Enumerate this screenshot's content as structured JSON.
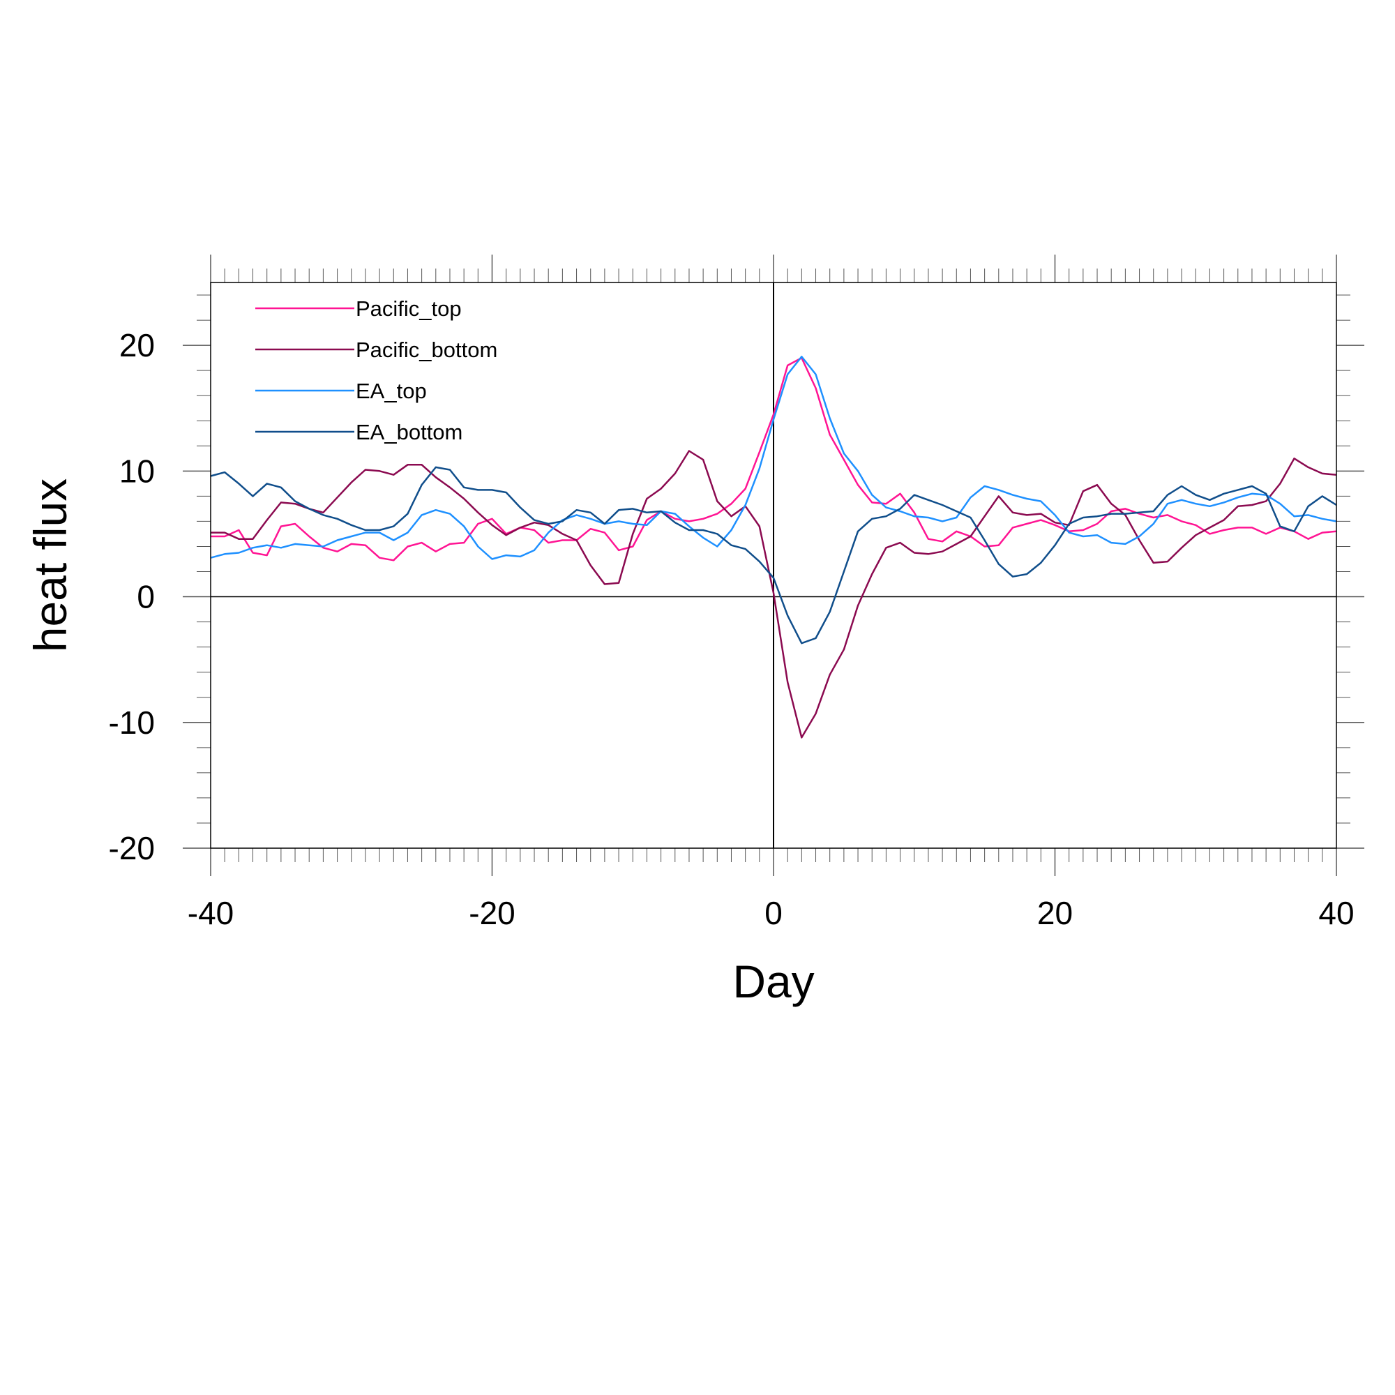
{
  "chart_data": {
    "type": "line",
    "title": "",
    "xlabel": "Day",
    "ylabel": "heat flux",
    "xlim": [
      -40,
      40
    ],
    "ylim": [
      -20,
      25
    ],
    "x_ticks": [
      "-40",
      "-20",
      "0",
      "20",
      "40"
    ],
    "x_tick_values": [
      -40,
      -20,
      0,
      20,
      40
    ],
    "y_ticks": [
      "-20",
      "-10",
      "0",
      "10",
      "20"
    ],
    "y_tick_values": [
      -20,
      -10,
      0,
      10,
      20
    ],
    "zero_line": true,
    "vertical_line_at": 0,
    "legend_position": "top-left",
    "x": [
      -40,
      -39,
      -38,
      -37,
      -36,
      -35,
      -34,
      -33,
      -32,
      -31,
      -30,
      -29,
      -28,
      -27,
      -26,
      -25,
      -24,
      -23,
      -22,
      -21,
      -20,
      -19,
      -18,
      -17,
      -16,
      -15,
      -14,
      -13,
      -12,
      -11,
      -10,
      -9,
      -8,
      -7,
      -6,
      -5,
      -4,
      -3,
      -2,
      -1,
      0,
      1,
      2,
      3,
      4,
      5,
      6,
      7,
      8,
      9,
      10,
      11,
      12,
      13,
      14,
      15,
      16,
      17,
      18,
      19,
      20,
      21,
      22,
      23,
      24,
      25,
      26,
      27,
      28,
      29,
      30,
      31,
      32,
      33,
      34,
      35,
      36,
      37,
      38,
      39,
      40
    ],
    "series": [
      {
        "name": "Pacific_top",
        "color": "#ff1493",
        "values": [
          4.8,
          4.8,
          5.3,
          3.5,
          3.3,
          5.6,
          5.8,
          4.8,
          3.9,
          3.6,
          4.2,
          4.1,
          3.1,
          2.9,
          4.0,
          4.3,
          3.6,
          4.2,
          4.3,
          5.8,
          6.2,
          5.0,
          5.5,
          5.3,
          4.3,
          4.5,
          4.5,
          5.4,
          5.1,
          3.7,
          4.0,
          6.1,
          6.8,
          6.2,
          6.0,
          6.2,
          6.6,
          7.4,
          8.6,
          11.5,
          14.5,
          18.4,
          19.0,
          16.6,
          12.9,
          10.9,
          8.9,
          7.5,
          7.4,
          8.2,
          6.7,
          4.6,
          4.4,
          5.2,
          4.8,
          4.0,
          4.1,
          5.5,
          5.8,
          6.1,
          5.7,
          5.2,
          5.3,
          5.8,
          6.8,
          7.0,
          6.6,
          6.3,
          6.5,
          6.0,
          5.7,
          5.0,
          5.3,
          5.5,
          5.5,
          5.0,
          5.5,
          5.2,
          4.6,
          5.1,
          5.2
        ]
      },
      {
        "name": "Pacific_bottom",
        "color": "#8b0a50",
        "values": [
          5.1,
          5.1,
          4.6,
          4.6,
          6.1,
          7.5,
          7.4,
          7.0,
          6.7,
          7.9,
          9.1,
          10.1,
          10.0,
          9.7,
          10.5,
          10.5,
          9.5,
          8.7,
          7.8,
          6.7,
          5.7,
          4.9,
          5.5,
          5.9,
          5.7,
          5.0,
          4.5,
          2.5,
          1.0,
          1.1,
          5.0,
          7.8,
          8.6,
          9.8,
          11.6,
          10.9,
          7.6,
          6.4,
          7.2,
          5.6,
          0.3,
          -6.8,
          -11.2,
          -9.3,
          -6.2,
          -4.2,
          -0.7,
          1.8,
          3.9,
          4.3,
          3.5,
          3.4,
          3.6,
          4.2,
          4.8,
          6.4,
          8.0,
          6.7,
          6.5,
          6.6,
          5.9,
          5.7,
          8.4,
          8.9,
          7.4,
          6.5,
          4.5,
          2.7,
          2.8,
          3.9,
          4.9,
          5.5,
          6.1,
          7.2,
          7.3,
          7.6,
          9.0,
          11.0,
          10.3,
          9.8,
          9.7
        ]
      },
      {
        "name": "EA_top",
        "color": "#1e90ff",
        "values": [
          3.1,
          3.4,
          3.5,
          3.9,
          4.1,
          3.9,
          4.2,
          4.1,
          4.0,
          4.5,
          4.8,
          5.1,
          5.1,
          4.5,
          5.1,
          6.5,
          6.9,
          6.6,
          5.6,
          4.0,
          3.0,
          3.3,
          3.2,
          3.7,
          5.1,
          6.1,
          6.5,
          6.2,
          5.8,
          6.0,
          5.8,
          5.7,
          6.8,
          6.6,
          5.6,
          4.7,
          4.0,
          5.3,
          7.3,
          10.2,
          14.1,
          17.7,
          19.1,
          17.7,
          14.2,
          11.4,
          10.0,
          8.1,
          7.1,
          6.8,
          6.4,
          6.3,
          6.0,
          6.3,
          7.9,
          8.8,
          8.5,
          8.1,
          7.8,
          7.6,
          6.5,
          5.1,
          4.8,
          4.9,
          4.3,
          4.2,
          4.8,
          5.8,
          7.4,
          7.7,
          7.4,
          7.2,
          7.5,
          7.9,
          8.2,
          8.1,
          7.4,
          6.4,
          6.5,
          6.2,
          6.0
        ]
      },
      {
        "name": "EA_bottom",
        "color": "#104e8b",
        "values": [
          9.6,
          9.9,
          9.0,
          8.0,
          9.0,
          8.7,
          7.6,
          7.0,
          6.5,
          6.2,
          5.7,
          5.3,
          5.3,
          5.6,
          6.6,
          8.9,
          10.3,
          10.1,
          8.7,
          8.5,
          8.5,
          8.3,
          7.1,
          6.1,
          5.8,
          6.0,
          6.9,
          6.7,
          5.8,
          6.9,
          7.0,
          6.7,
          6.8,
          5.9,
          5.3,
          5.3,
          5.0,
          4.1,
          3.8,
          2.8,
          1.5,
          -1.5,
          -3.7,
          -3.3,
          -1.2,
          2.0,
          5.2,
          6.2,
          6.4,
          7.0,
          8.1,
          7.7,
          7.3,
          6.8,
          6.3,
          4.5,
          2.6,
          1.6,
          1.8,
          2.7,
          4.1,
          5.8,
          6.3,
          6.4,
          6.6,
          6.6,
          6.7,
          6.8,
          8.1,
          8.8,
          8.1,
          7.7,
          8.2,
          8.5,
          8.8,
          8.2,
          5.6,
          5.2,
          7.2,
          8.0,
          7.3
        ]
      }
    ]
  }
}
